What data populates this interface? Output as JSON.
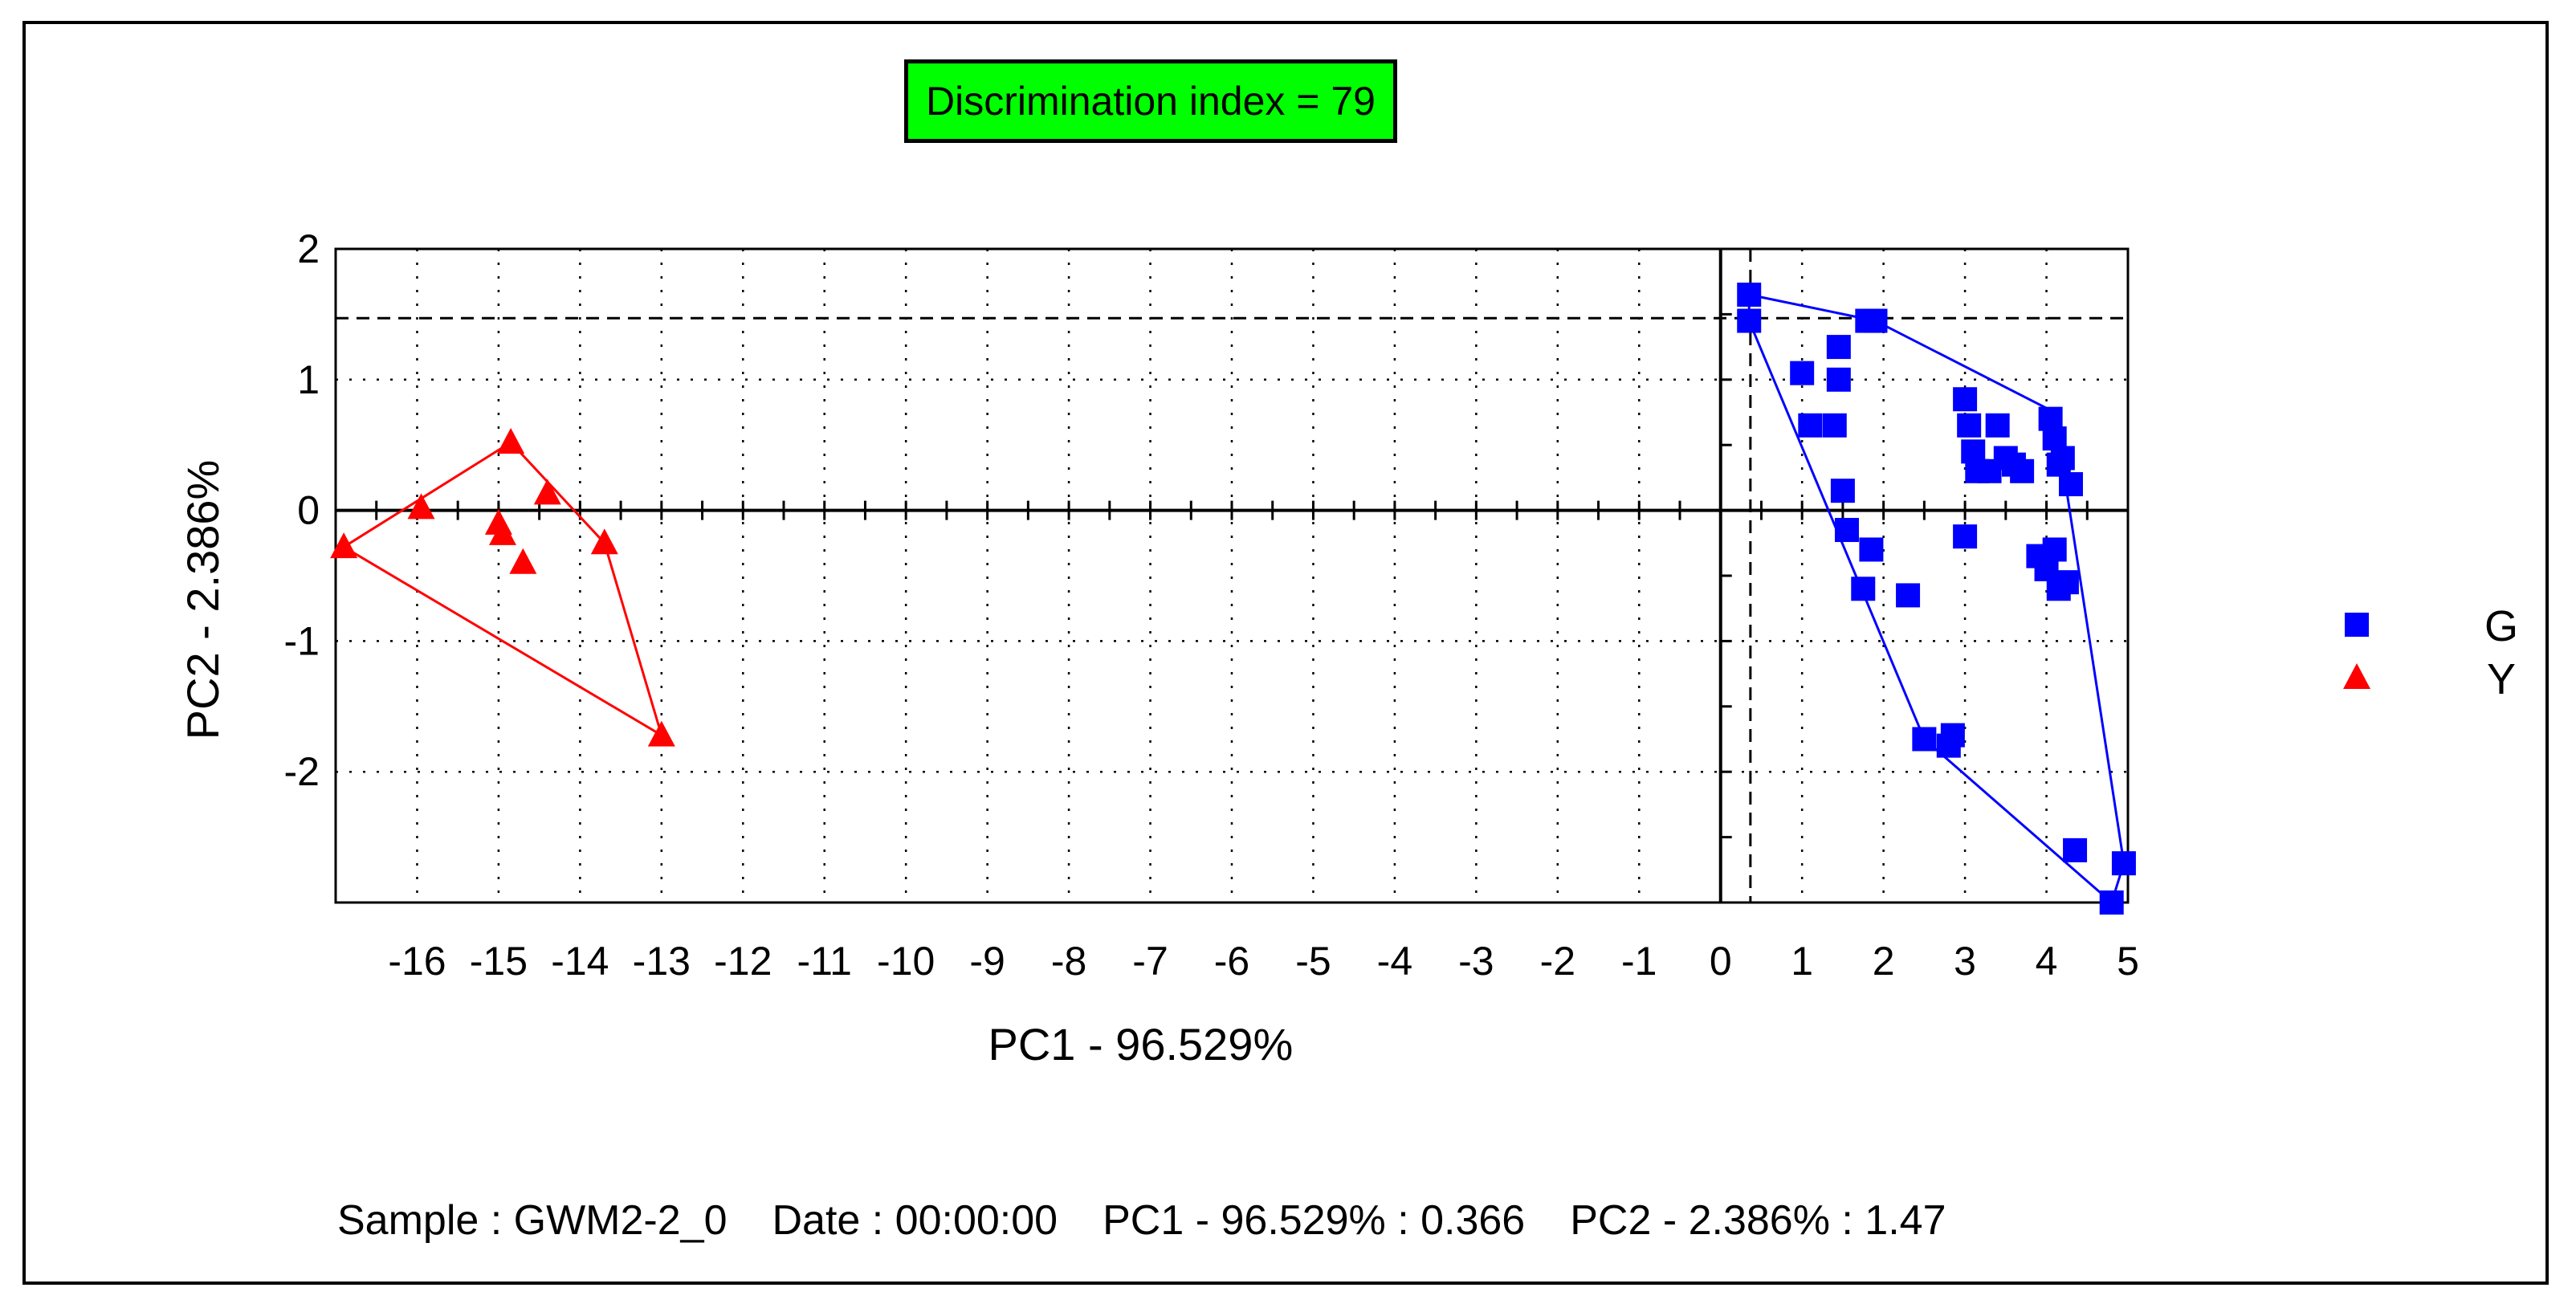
{
  "chart_data": {
    "type": "scatter",
    "xlabel": "PC1 - 96.529%",
    "ylabel": "PC2 - 2.386%",
    "xlim": [
      -17,
      5
    ],
    "ylim": [
      -3,
      2
    ],
    "x_ticks": [
      -16,
      -15,
      -14,
      -13,
      -12,
      -11,
      -10,
      -9,
      -8,
      -7,
      -6,
      -5,
      -4,
      -3,
      -2,
      -1,
      0,
      1,
      2,
      3,
      4,
      5
    ],
    "y_ticks": [
      2,
      1,
      0,
      -1,
      -2
    ],
    "grid": true,
    "annotation": "Discrimination index = 79",
    "crosshair": {
      "x": 0.366,
      "y": 1.47
    },
    "series": [
      {
        "name": "G",
        "marker": "square",
        "color": "#0000ff",
        "points": [
          [
            0.35,
            1.65
          ],
          [
            0.35,
            1.45
          ],
          [
            1.8,
            1.45
          ],
          [
            1.9,
            1.45
          ],
          [
            1.45,
            1.25
          ],
          [
            1.45,
            1.0
          ],
          [
            1.0,
            1.05
          ],
          [
            1.1,
            0.65
          ],
          [
            1.4,
            0.65
          ],
          [
            1.5,
            0.15
          ],
          [
            1.55,
            -0.15
          ],
          [
            1.85,
            -0.3
          ],
          [
            1.75,
            -0.6
          ],
          [
            2.3,
            -0.65
          ],
          [
            3.0,
            0.85
          ],
          [
            3.05,
            0.65
          ],
          [
            3.1,
            0.45
          ],
          [
            3.15,
            0.3
          ],
          [
            3.3,
            0.3
          ],
          [
            3.4,
            0.65
          ],
          [
            3.5,
            0.4
          ],
          [
            3.6,
            0.35
          ],
          [
            3.7,
            0.3
          ],
          [
            3.0,
            -0.2
          ],
          [
            4.05,
            0.7
          ],
          [
            4.1,
            0.55
          ],
          [
            4.15,
            0.35
          ],
          [
            4.2,
            0.4
          ],
          [
            4.3,
            0.2
          ],
          [
            3.9,
            -0.35
          ],
          [
            4.0,
            -0.45
          ],
          [
            4.1,
            -0.3
          ],
          [
            4.15,
            -0.6
          ],
          [
            4.25,
            -0.55
          ],
          [
            2.5,
            -1.75
          ],
          [
            2.8,
            -1.8
          ],
          [
            2.85,
            -1.72
          ],
          [
            4.35,
            -2.6
          ],
          [
            4.8,
            -3.0
          ],
          [
            4.95,
            -2.7
          ]
        ],
        "hull": [
          [
            0.35,
            1.65
          ],
          [
            1.9,
            1.45
          ],
          [
            4.1,
            0.75
          ],
          [
            4.95,
            -2.7
          ],
          [
            4.8,
            -3.0
          ],
          [
            2.5,
            -1.75
          ],
          [
            0.35,
            1.45
          ]
        ]
      },
      {
        "name": "Y",
        "marker": "triangle",
        "color": "#ff0000",
        "points": [
          [
            -16.9,
            -0.28
          ],
          [
            -15.95,
            0.02
          ],
          [
            -14.85,
            0.52
          ],
          [
            -14.4,
            0.13
          ],
          [
            -15.0,
            -0.1
          ],
          [
            -14.95,
            -0.18
          ],
          [
            -14.7,
            -0.4
          ],
          [
            -13.7,
            -0.25
          ],
          [
            -13.0,
            -1.72
          ]
        ],
        "hull": [
          [
            -16.9,
            -0.28
          ],
          [
            -14.85,
            0.52
          ],
          [
            -13.7,
            -0.25
          ],
          [
            -13.0,
            -1.72
          ]
        ]
      }
    ]
  },
  "status_bar": {
    "sample": "Sample : GWM2-2_0",
    "date": "Date : 00:00:00",
    "pc1": "PC1 - 96.529% : 0.366",
    "pc2": "PC2 - 2.386% : 1.47"
  }
}
